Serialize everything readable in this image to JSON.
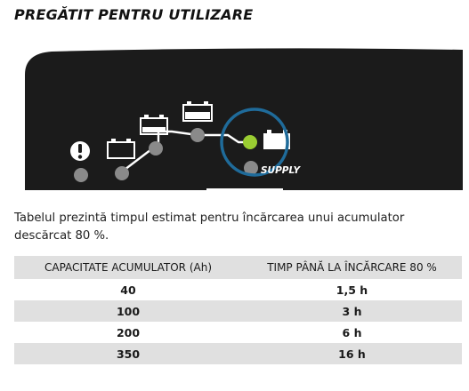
{
  "heading": "PREGĂTIT PENTRU UTILIZARE",
  "panel": {
    "supply_label": "SUPPLY",
    "colors": {
      "panel": "#1b1b1b",
      "dot": "#8a8a8a",
      "active_dot": "#9acd32",
      "ring": "#1f6b9a",
      "battery": "#ffffff"
    }
  },
  "intro_text": "Tabelul prezintă timpul estimat pentru încărcarea unui acumulator descărcat 80 %.",
  "table": {
    "headers": [
      "CAPACITATE ACUMULATOR (Ah)",
      "TIMP PÂNĂ LA ÎNCĂRCARE 80 %"
    ],
    "rows": [
      [
        "40",
        "1,5 h"
      ],
      [
        "100",
        "3 h"
      ],
      [
        "200",
        "6 h"
      ],
      [
        "350",
        "16 h"
      ]
    ]
  }
}
